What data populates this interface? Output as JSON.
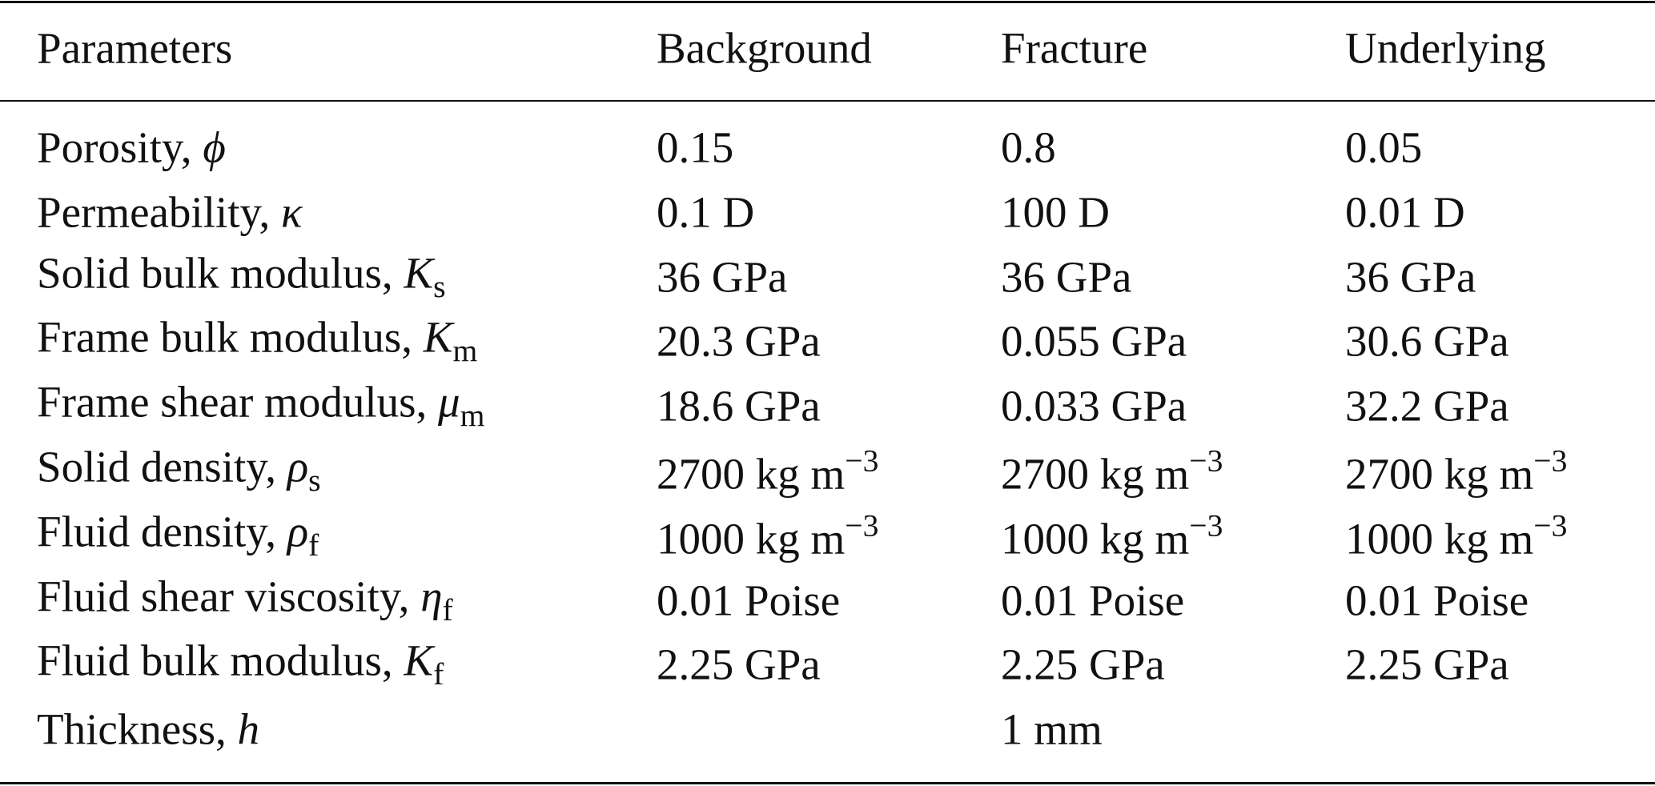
{
  "table": {
    "header": [
      "Parameters",
      "Background",
      "Fracture",
      "Underlying"
    ],
    "rows": [
      {
        "name": "Porosity,",
        "symbol": "ϕ",
        "values": [
          "0.15",
          "0.8",
          "0.05"
        ]
      },
      {
        "name": "Permeability,",
        "symbol": "κ",
        "values": [
          "0.1 D",
          "100 D",
          "0.01 D"
        ]
      },
      {
        "name": "Solid bulk modulus,",
        "symbol": "K",
        "sub": "s",
        "values": [
          "36 GPa",
          "36 GPa",
          "36 GPa"
        ]
      },
      {
        "name": "Frame bulk modulus,",
        "symbol": "K",
        "sub": "m",
        "values": [
          "20.3 GPa",
          "0.055 GPa",
          "30.6 GPa"
        ]
      },
      {
        "name": "Frame shear modulus,",
        "symbol": "μ",
        "sub": "m",
        "values": [
          "18.6 GPa",
          "0.033 GPa",
          "32.2 GPa"
        ]
      },
      {
        "name": "Solid density,",
        "symbol": "ρ",
        "sub": "s",
        "values": [
          {
            "text": "2700 kg m",
            "sup": "−3"
          },
          {
            "text": "2700 kg m",
            "sup": "−3"
          },
          {
            "text": "2700 kg m",
            "sup": "−3"
          }
        ]
      },
      {
        "name": "Fluid density,",
        "symbol": "ρ",
        "sub": "f",
        "values": [
          {
            "text": "1000 kg m",
            "sup": "−3"
          },
          {
            "text": "1000 kg m",
            "sup": "−3"
          },
          {
            "text": "1000 kg m",
            "sup": "−3"
          }
        ]
      },
      {
        "name": "Fluid shear viscosity,",
        "symbol": "η",
        "sub": "f",
        "values": [
          "0.01 Poise",
          "0.01 Poise",
          "0.01 Poise"
        ]
      },
      {
        "name": "Fluid bulk modulus,",
        "symbol": "K",
        "sub": "f",
        "values": [
          "2.25 GPa",
          "2.25 GPa",
          "2.25 GPa"
        ]
      },
      {
        "name": "Thickness,",
        "symbol": "h",
        "values": [
          null,
          "1 mm",
          null
        ]
      }
    ]
  }
}
